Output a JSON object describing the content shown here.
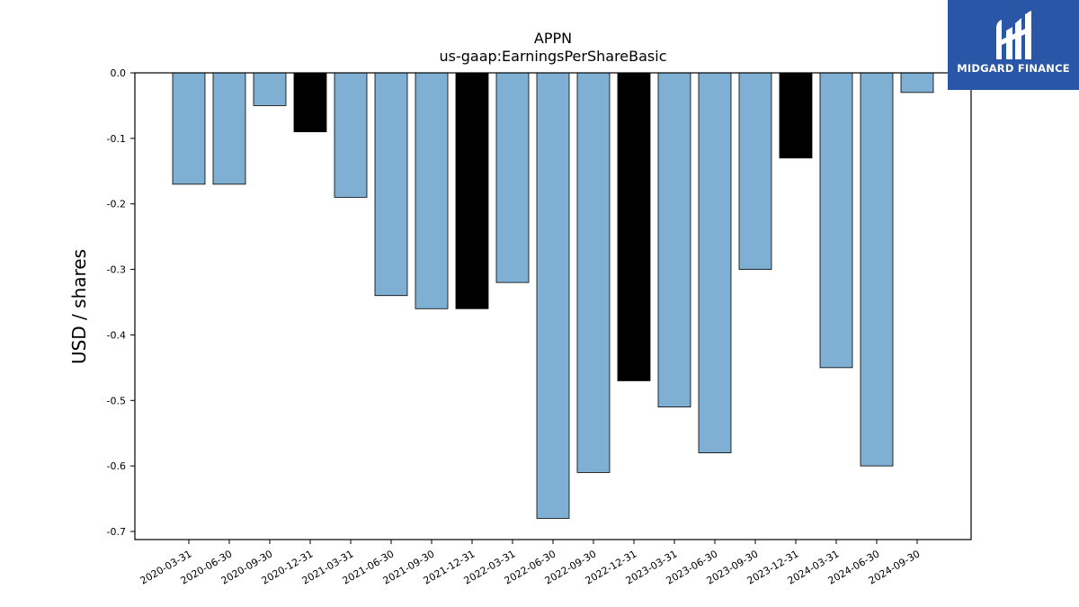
{
  "chart_data": {
    "type": "bar",
    "title": "APPN",
    "subtitle": "us-gaap:EarningsPerShareBasic",
    "xlabel": "",
    "ylabel": "USD / shares",
    "ylim": [
      -0.7,
      0.0
    ],
    "yticks": [
      "0.0",
      "-0.1",
      "-0.2",
      "-0.3",
      "-0.4",
      "-0.5",
      "-0.6",
      "-0.7"
    ],
    "ytick_values": [
      0.0,
      -0.1,
      -0.2,
      -0.3,
      -0.4,
      -0.5,
      -0.6,
      -0.7
    ],
    "grid": false,
    "categories": [
      "2020-03-31",
      "2020-06-30",
      "2020-09-30",
      "2020-12-31",
      "2021-03-31",
      "2021-06-30",
      "2021-09-30",
      "2021-12-31",
      "2022-03-31",
      "2022-06-30",
      "2022-09-30",
      "2022-12-31",
      "2023-03-31",
      "2023-06-30",
      "2023-09-30",
      "2023-12-31",
      "2024-03-31",
      "2024-06-30",
      "2024-09-30"
    ],
    "values": [
      -0.17,
      -0.17,
      -0.05,
      -0.09,
      -0.19,
      -0.34,
      -0.36,
      -0.36,
      -0.32,
      -0.68,
      -0.61,
      -0.47,
      -0.51,
      -0.58,
      -0.3,
      -0.13,
      -0.45,
      -0.6,
      -0.03
    ],
    "colors": {
      "quarter": "#7fafd3",
      "year_end": "#000000",
      "edge": "#000000"
    },
    "highlighted_categories": [
      "2020-12-31",
      "2021-12-31",
      "2022-12-31",
      "2023-12-31"
    ]
  },
  "logo": {
    "text": "MIDGARD FINANCE",
    "background": "#2a56a8"
  }
}
